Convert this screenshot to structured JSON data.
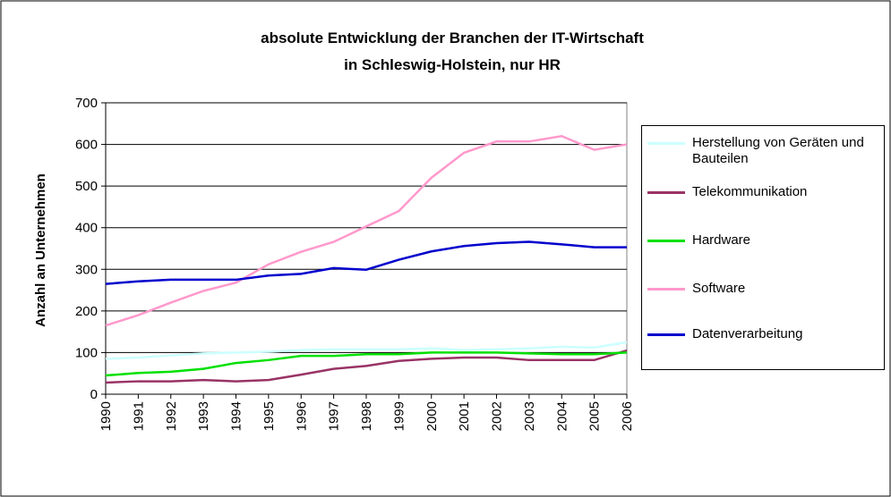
{
  "chart_data": {
    "type": "line",
    "title": [
      "absolute Entwicklung der Branchen der IT-Wirtschaft",
      "in Schleswig-Holstein, nur HR"
    ],
    "y_label": "Anzahl an Unternehmen",
    "categories": [
      "1990",
      "1991",
      "1992",
      "1993",
      "1994",
      "1995",
      "1996",
      "1997",
      "1998",
      "1999",
      "2000",
      "2001",
      "2002",
      "2003",
      "2004",
      "2005",
      "2006"
    ],
    "series": [
      {
        "name": "Herstellung von Geräten und Bauteilen",
        "color": "#ccffff",
        "values": [
          85,
          88,
          93,
          98,
          100,
          102,
          106,
          108,
          108,
          108,
          110,
          106,
          108,
          110,
          114,
          112,
          125
        ]
      },
      {
        "name": "Telekommunikation",
        "color": "#993366",
        "values": [
          28,
          31,
          31,
          34,
          31,
          34,
          47,
          61,
          68,
          80,
          85,
          88,
          88,
          82,
          82,
          82,
          105
        ]
      },
      {
        "name": "Hardware",
        "color": "#00e000",
        "values": [
          45,
          51,
          54,
          61,
          75,
          82,
          92,
          92,
          96,
          96,
          100,
          100,
          100,
          98,
          96,
          96,
          100
        ]
      },
      {
        "name": "Software",
        "color": "#ff99cc",
        "values": [
          165,
          190,
          220,
          248,
          268,
          312,
          342,
          366,
          403,
          440,
          520,
          580,
          607,
          607,
          620,
          587,
          600
        ]
      },
      {
        "name": "Datenverarbeitung",
        "color": "#0000cc",
        "values": [
          265,
          271,
          275,
          275,
          275,
          285,
          289,
          303,
          299,
          323,
          343,
          356,
          363,
          366,
          360,
          353,
          353
        ]
      }
    ],
    "ylim": [
      0,
      700
    ],
    "yticks": [
      0,
      100,
      200,
      300,
      400,
      500,
      600,
      700
    ],
    "grid": true,
    "legend": "right"
  }
}
